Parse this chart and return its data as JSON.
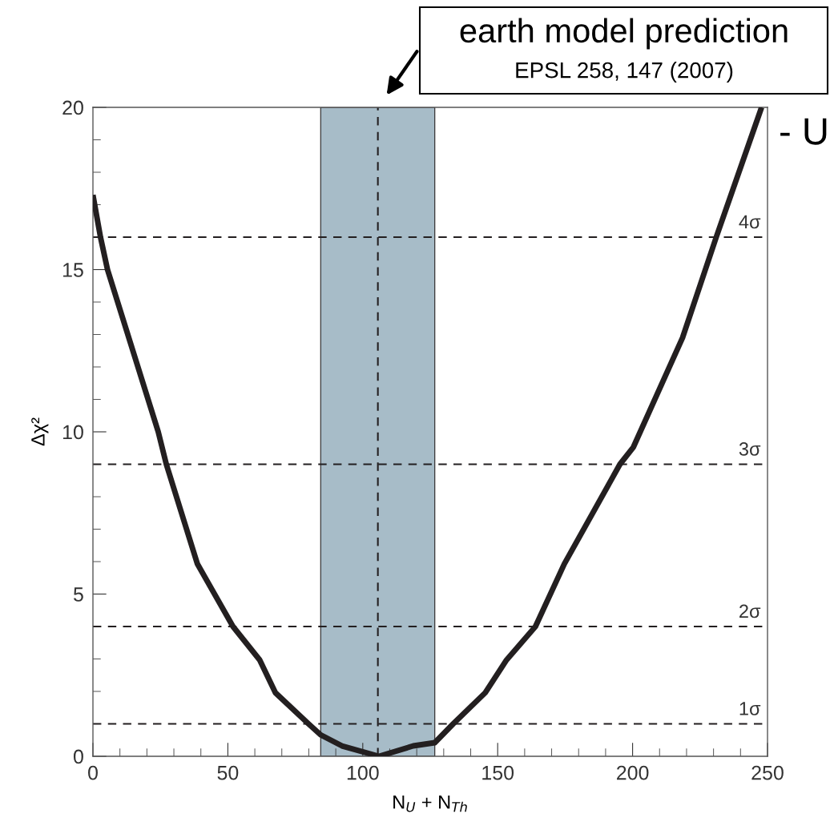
{
  "chart_data": {
    "type": "line",
    "xlabel": "N$_{U}$ + N$_{Th}$",
    "ylabel": "Δχ²",
    "xlim": [
      0,
      250
    ],
    "xticks": [
      0,
      50,
      100,
      150,
      200,
      250
    ],
    "ylim": [
      0,
      20
    ],
    "yticks": [
      0,
      5,
      10,
      15,
      20
    ],
    "grid": false,
    "line_style": "solid",
    "marker": "none",
    "series": [
      {
        "color": "#231f20",
        "x": [
          0,
          2.8,
          5.4,
          24.2,
          27.2,
          38.7,
          51.9,
          61.8,
          67.6,
          79.9,
          84.4,
          92.3,
          106,
          118.7,
          126.7,
          133.5,
          145.4,
          153.3,
          164,
          174.7,
          195.3,
          200.3,
          218.5,
          231,
          247.8
        ],
        "values": [
          17.3,
          16,
          15,
          10,
          9,
          5.93,
          4,
          2.97,
          1.96,
          1,
          0.66,
          0.32,
          0,
          0.32,
          0.42,
          1,
          1.96,
          2.97,
          4,
          5.93,
          9,
          9.53,
          12.9,
          16,
          20
        ]
      }
    ],
    "ref_lines": [
      {
        "axis": "y",
        "value": 1,
        "label": "1σ",
        "line_style": "dashed",
        "color": "#231f20"
      },
      {
        "axis": "y",
        "value": 4,
        "label": "2σ",
        "line_style": "dashed",
        "color": "#231f20"
      },
      {
        "axis": "y",
        "value": 9,
        "label": "3σ",
        "line_style": "dashed",
        "color": "#231f20"
      },
      {
        "axis": "y",
        "value": 16,
        "label": "4σ",
        "line_style": "dashed",
        "color": "#231f20"
      },
      {
        "axis": "x",
        "value": 105.6,
        "line_style": "dashed",
        "color": "#231f20"
      }
    ],
    "bands": [
      {
        "axis": "x",
        "from": 84.4,
        "to": 126.7,
        "color": "#a7bcc8"
      }
    ],
    "annotations": [
      "earth model prediction",
      "EPSL 258, 147 (2007)",
      "- U"
    ]
  }
}
